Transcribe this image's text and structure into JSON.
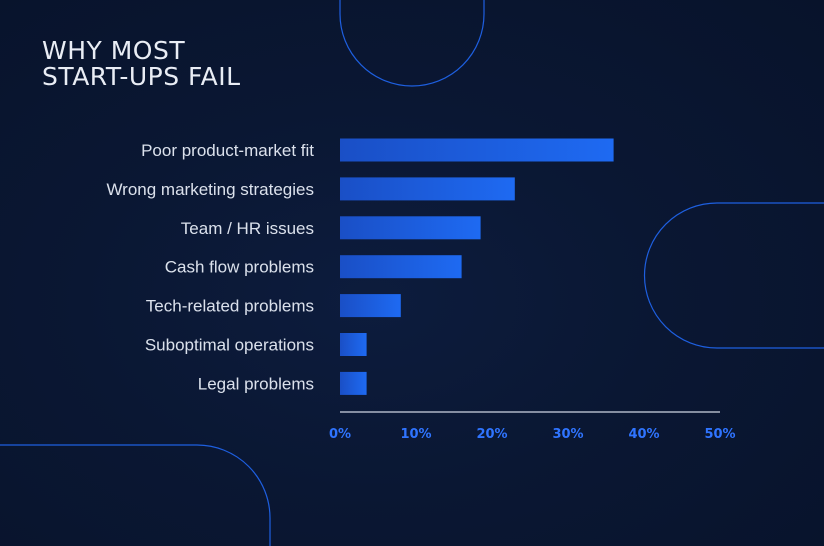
{
  "chart_data": {
    "type": "bar",
    "orientation": "horizontal",
    "title": [
      "WHY MOST",
      "START-UPS FAIL"
    ],
    "categories": [
      "Poor product-market fit",
      "Wrong marketing strategies",
      "Team / HR issues",
      "Cash flow problems",
      "Tech-related problems",
      "Suboptimal operations",
      "Legal problems"
    ],
    "values": [
      36,
      23,
      18.5,
      16,
      8,
      3.5,
      3.5
    ],
    "xlim": [
      0,
      50
    ],
    "x_ticks": [
      "0%",
      "10%",
      "20%",
      "30%",
      "40%",
      "50%"
    ],
    "grid": false,
    "legend": "none"
  },
  "colors": {
    "bar_start": "#1a4fc6",
    "bar_end": "#1e6af2",
    "tick_label": "#2f74ff",
    "category_label": "#dbe1ec",
    "axis": "#aeb6c6",
    "decor_line": "#1e5fe0"
  }
}
